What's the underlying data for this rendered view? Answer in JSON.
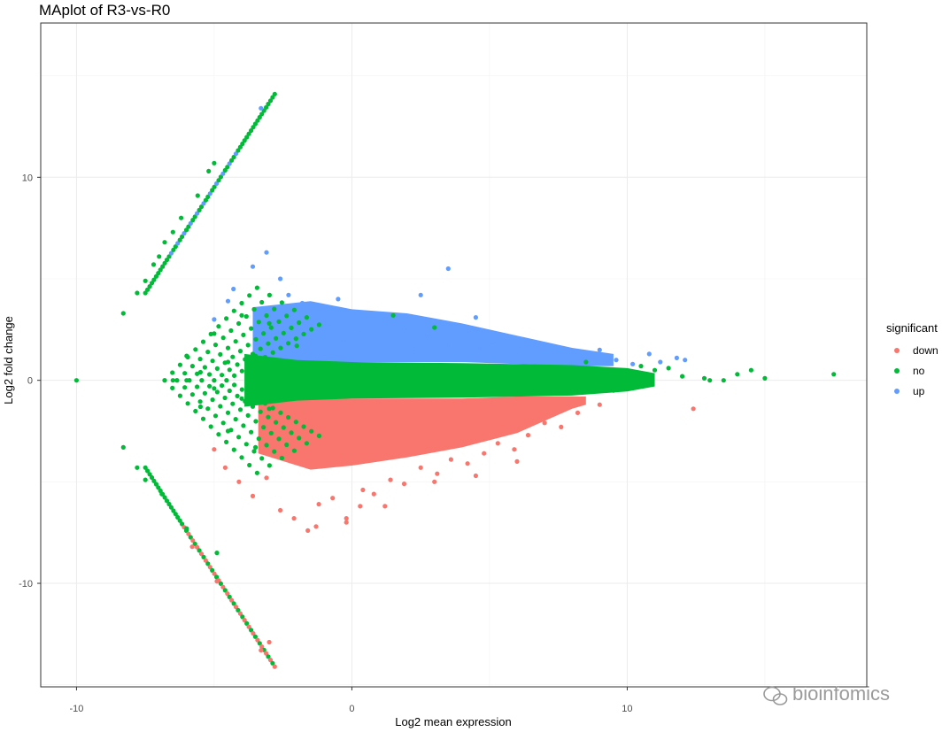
{
  "chart_data": {
    "type": "scatter",
    "title": "MAplot of R3-vs-R0",
    "xlabel": "Log2 mean expression",
    "ylabel": "Log2 fold change",
    "xlim": [
      -11.3,
      18.7
    ],
    "ylim": [
      -15.1,
      17.6
    ],
    "x_ticks": [
      -10,
      0,
      10
    ],
    "y_ticks": [
      -10,
      0,
      10
    ],
    "grid": true,
    "legend": {
      "title": "significant",
      "position": "right",
      "entries": [
        {
          "label": "down",
          "color": "#F8766D"
        },
        {
          "label": "no",
          "color": "#00BA38"
        },
        {
          "label": "up",
          "color": "#619CFF"
        }
      ]
    },
    "series": [
      {
        "name": "no",
        "color": "#00BA38",
        "x": [
          -10.0,
          -8.3,
          -8.3,
          -7.8,
          -7.8,
          -7.5,
          -7.5,
          -7.2,
          -7.0,
          -6.9,
          -6.8,
          -6.5,
          -6.2,
          -6.0,
          -5.6,
          -5.2,
          -5.0,
          -4.9,
          -6.5,
          -6.0,
          -5.5,
          -5.0,
          -4.5,
          -4.0,
          -3.5,
          -3.0,
          -6.0,
          -5.5,
          -5.0,
          -4.5,
          -4.0,
          -3.5,
          -3.0,
          -2.5,
          -2.0,
          -1.5,
          -1.0,
          0.0,
          1.0,
          2.0,
          3.0,
          4.0,
          5.0,
          6.0,
          7.0,
          8.0,
          9.0,
          10.0,
          11.0,
          12.0,
          13.0,
          14.0,
          14.5,
          15.0,
          17.5,
          1.5,
          3.0,
          -2.0,
          10.5,
          9.5,
          11.5,
          8.5,
          12.8,
          13.5
        ],
        "y": [
          0.0,
          3.3,
          -3.3,
          4.3,
          -4.3,
          4.9,
          -4.9,
          5.7,
          6.1,
          -5.6,
          6.8,
          7.3,
          8.0,
          -7.3,
          9.1,
          10.3,
          10.7,
          -8.5,
          0.0,
          1.2,
          -1.3,
          2.3,
          -2.5,
          3.2,
          -3.3,
          2.8,
          0.0,
          0.4,
          -0.4,
          0.9,
          -0.9,
          1.2,
          -1.4,
          0.6,
          -0.5,
          0.2,
          -0.3,
          0.0,
          0.3,
          -0.2,
          0.1,
          -0.1,
          0.2,
          0.0,
          0.3,
          0.0,
          0.5,
          0.3,
          0.5,
          0.2,
          0.0,
          0.3,
          0.5,
          0.1,
          0.3,
          3.2,
          2.6,
          1.7,
          0.7,
          -0.5,
          0.6,
          0.9,
          0.1,
          0.0
        ]
      },
      {
        "name": "up",
        "color": "#619CFF",
        "x": [
          -4.3,
          -4.5,
          -5.0,
          -3.6,
          -3.1,
          -2.6,
          -2.3,
          -1.8,
          -1.3,
          -0.8,
          -0.3,
          0.3,
          1.0,
          1.6,
          2.2,
          2.8,
          3.4,
          4.0,
          4.6,
          5.1,
          5.6,
          6.2,
          6.8,
          7.3,
          7.9,
          8.4,
          9.0,
          9.6,
          10.2,
          10.8,
          11.2,
          11.8,
          12.1,
          3.5,
          0.5,
          -0.5,
          2.5,
          4.5,
          -3.3,
          -1.8,
          1.9
        ],
        "y": [
          4.5,
          3.9,
          3.0,
          5.6,
          6.3,
          5.0,
          4.2,
          3.8,
          2.9,
          2.6,
          1.9,
          2.3,
          1.8,
          2.7,
          1.4,
          2.1,
          1.7,
          2.4,
          1.5,
          1.9,
          1.2,
          1.6,
          1.1,
          1.4,
          0.9,
          1.2,
          1.5,
          1.0,
          0.8,
          1.3,
          0.9,
          1.1,
          1.0,
          5.5,
          3.3,
          4.0,
          4.2,
          3.1,
          13.4,
          3.2,
          2.5
        ]
      },
      {
        "name": "down",
        "color": "#F8766D",
        "x": [
          -5.0,
          -4.6,
          -4.1,
          -3.6,
          -3.1,
          -2.6,
          -2.1,
          -1.6,
          -1.2,
          -0.7,
          -0.2,
          0.3,
          0.8,
          1.4,
          1.9,
          2.5,
          3.1,
          3.6,
          4.2,
          4.8,
          5.3,
          5.9,
          6.4,
          7.0,
          7.6,
          8.2,
          9.0,
          12.4,
          1.2,
          -1.3,
          -0.2,
          0.4,
          3.0,
          4.5,
          6.0,
          -5.8,
          -4.9,
          -3.0,
          -3.3,
          -2.2
        ],
        "y": [
          -3.4,
          -4.3,
          -5.0,
          -5.7,
          -4.8,
          -6.4,
          -6.8,
          -7.4,
          -6.1,
          -5.8,
          -7.0,
          -6.2,
          -5.6,
          -4.9,
          -5.1,
          -4.3,
          -4.6,
          -3.9,
          -4.1,
          -3.6,
          -3.1,
          -3.4,
          -2.7,
          -2.1,
          -2.3,
          -1.6,
          -1.2,
          -1.4,
          -6.2,
          -7.2,
          -6.8,
          -5.4,
          -5.0,
          -4.7,
          -4.0,
          -8.2,
          -9.9,
          -12.9,
          -13.3,
          -1.2
        ]
      }
    ],
    "watermark": "bioinfomics"
  }
}
